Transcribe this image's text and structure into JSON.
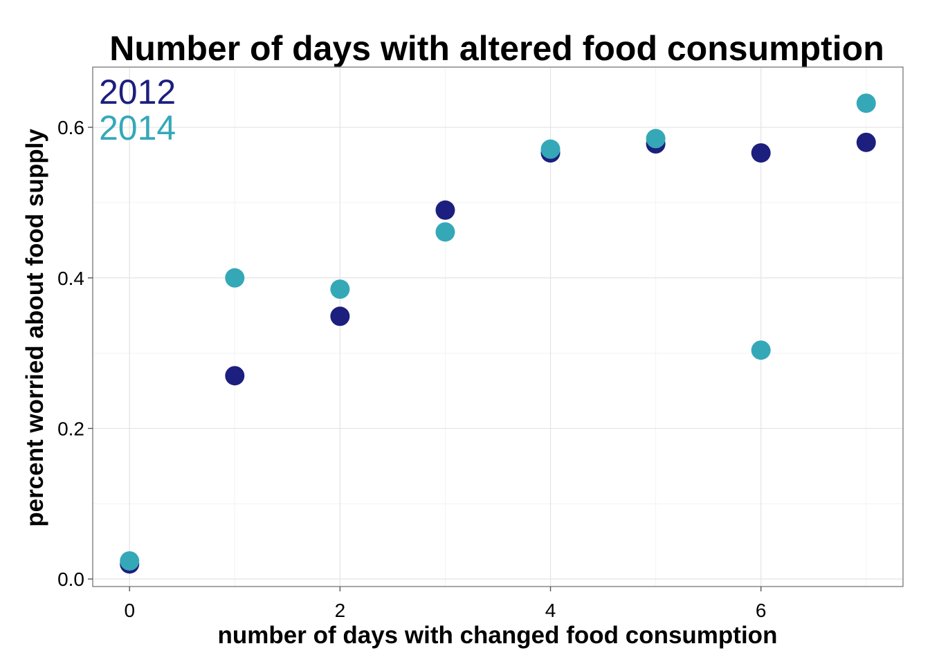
{
  "chart_data": {
    "type": "scatter",
    "title": "Number of days with altered food consumption",
    "xlabel": "number of days with changed food consumption",
    "ylabel": "percent worried about food supply",
    "xlim": [
      -0.35,
      7.35
    ],
    "ylim": [
      -0.01,
      0.68
    ],
    "x_ticks": [
      0,
      2,
      4,
      6
    ],
    "x_tick_labels": [
      "0",
      "2",
      "4",
      "6"
    ],
    "y_ticks": [
      0.0,
      0.2,
      0.4,
      0.6
    ],
    "y_tick_labels": [
      "0.0",
      "0.2",
      "0.4",
      "0.6"
    ],
    "grid": true,
    "legend_position": "top-left inside",
    "series": [
      {
        "name": "2012",
        "color": "#1c1f7e",
        "x": [
          0,
          1,
          2,
          3,
          4,
          5,
          6,
          7
        ],
        "y": [
          0.02,
          0.27,
          0.349,
          0.49,
          0.566,
          0.578,
          0.566,
          0.58
        ]
      },
      {
        "name": "2014",
        "color": "#35a8b8",
        "x": [
          0,
          1,
          2,
          3,
          4,
          5,
          6,
          7
        ],
        "y": [
          0.024,
          0.4,
          0.385,
          0.461,
          0.571,
          0.585,
          0.304,
          0.632
        ]
      }
    ]
  }
}
